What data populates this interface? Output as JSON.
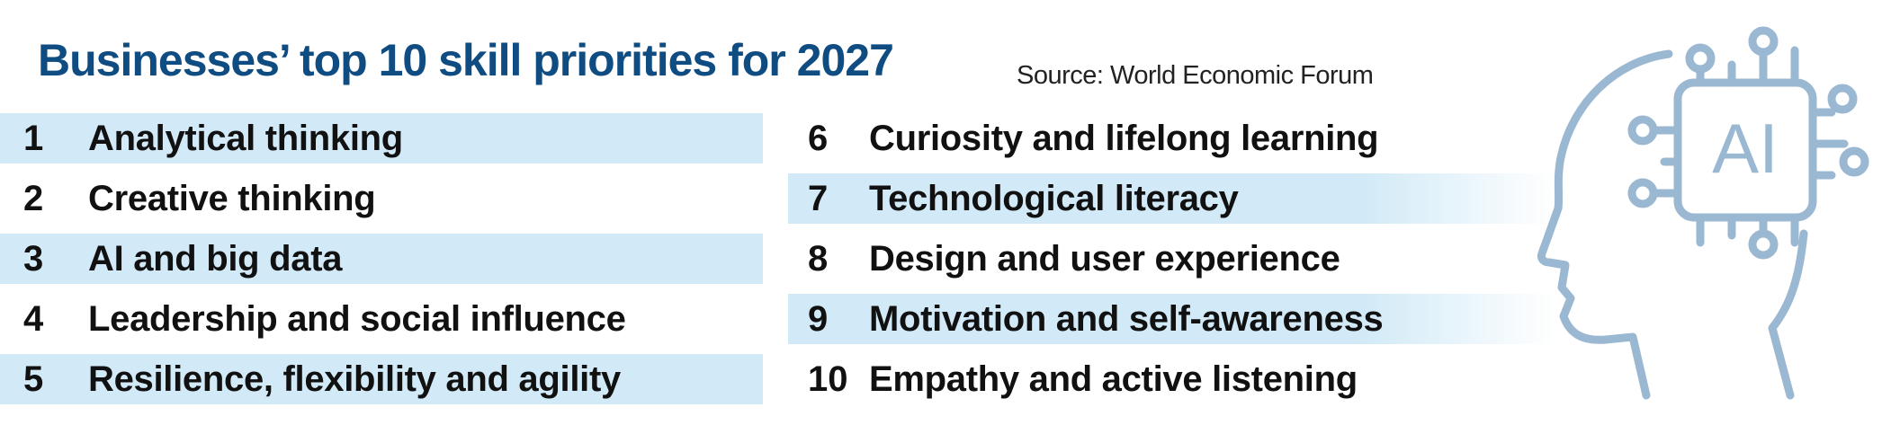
{
  "header": {
    "title": "Businesses’ top 10 skill priorities for 2027",
    "source": "Source: World Economic Forum"
  },
  "skills_left": [
    {
      "rank": "1",
      "label": "Analytical thinking",
      "shaded": true
    },
    {
      "rank": "2",
      "label": "Creative thinking",
      "shaded": false
    },
    {
      "rank": "3",
      "label": "AI and big data",
      "shaded": true
    },
    {
      "rank": "4",
      "label": "Leadership and social influence",
      "shaded": false
    },
    {
      "rank": "5",
      "label": "Resilience, flexibility and agility",
      "shaded": true
    }
  ],
  "skills_right": [
    {
      "rank": "6",
      "label": "Curiosity and lifelong learning",
      "shaded": false
    },
    {
      "rank": "7",
      "label": "Technological literacy",
      "shaded": true
    },
    {
      "rank": "8",
      "label": "Design and user experience",
      "shaded": false
    },
    {
      "rank": "9",
      "label": "Motivation and self-awareness",
      "shaded": true
    },
    {
      "rank": "10",
      "label": "Empathy and active listening",
      "shaded": false
    }
  ],
  "illustration": {
    "icon": "ai-head-chip-icon",
    "chip_text": "AI",
    "color": "#9bb8d3"
  },
  "colors": {
    "title": "#0f4c81",
    "row_shade": "#d2eaf7"
  }
}
